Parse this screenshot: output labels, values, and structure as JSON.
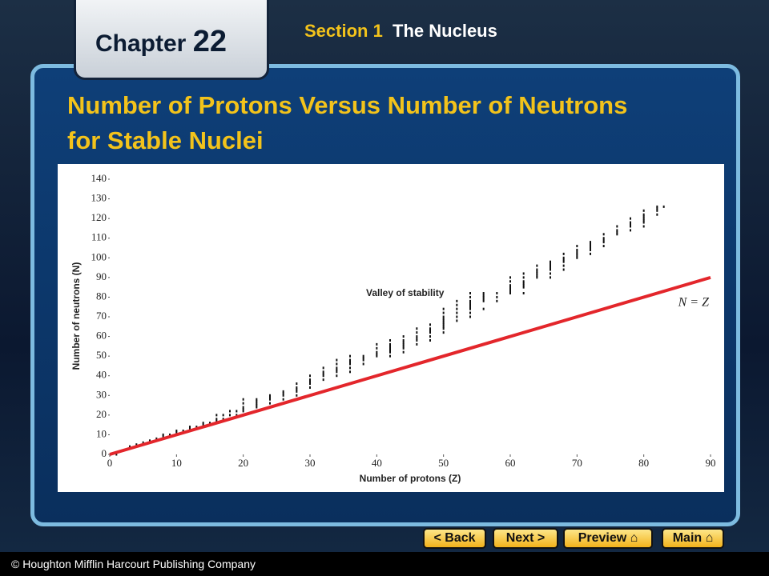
{
  "header": {
    "chapter": "Chapter",
    "chapter_number": "22",
    "section": "Section 1",
    "section_title": "The Nucleus"
  },
  "title": "Number of Protons Versus Number of Neutrons for Stable Nuclei",
  "chart_data": {
    "type": "scatter",
    "xlabel": "Number of protons (Z)",
    "ylabel": "Number of neutrons (N)",
    "annotation": "Valley of stability",
    "xlim": [
      0,
      90
    ],
    "xticks": [
      0,
      10,
      20,
      30,
      40,
      50,
      60,
      70,
      80,
      90
    ],
    "ylim": [
      0,
      140
    ],
    "yticks": [
      0,
      10,
      20,
      30,
      40,
      50,
      60,
      70,
      80,
      90,
      100,
      110,
      120,
      130,
      140
    ],
    "series": [
      {
        "type": "scatter",
        "color": "#111111",
        "x": [
          1,
          1,
          2,
          3,
          4,
          5,
          5,
          6,
          6,
          7,
          7,
          8,
          8,
          8,
          9,
          10,
          10,
          10,
          11,
          12,
          12,
          12,
          13,
          14,
          14,
          14,
          15,
          16,
          16,
          16,
          16,
          17,
          17,
          18,
          18,
          18,
          19,
          19,
          20,
          20,
          20,
          20,
          20,
          20,
          22,
          22,
          22,
          22,
          22,
          24,
          24,
          24,
          24,
          26,
          26,
          26,
          26,
          28,
          28,
          28,
          28,
          28,
          30,
          30,
          30,
          30,
          30,
          32,
          32,
          32,
          32,
          32,
          34,
          34,
          34,
          34,
          34,
          34,
          36,
          36,
          36,
          36,
          36,
          36,
          38,
          38,
          38,
          38,
          40,
          40,
          40,
          40,
          40,
          42,
          42,
          42,
          42,
          42,
          42,
          42,
          44,
          44,
          44,
          44,
          44,
          44,
          44,
          46,
          46,
          46,
          46,
          46,
          46,
          48,
          48,
          48,
          48,
          48,
          48,
          50,
          50,
          50,
          50,
          50,
          50,
          50,
          50,
          50,
          50,
          52,
          52,
          52,
          52,
          52,
          52,
          54,
          54,
          54,
          54,
          54,
          54,
          54,
          54,
          54,
          56,
          56,
          56,
          56,
          56,
          56,
          58,
          58,
          58,
          60,
          60,
          60,
          60,
          60,
          60,
          60,
          62,
          62,
          62,
          62,
          62,
          62,
          62,
          64,
          64,
          64,
          64,
          64,
          64,
          66,
          66,
          66,
          66,
          66,
          66,
          66,
          68,
          68,
          68,
          68,
          68,
          68,
          70,
          70,
          70,
          70,
          70,
          70,
          72,
          72,
          72,
          72,
          72,
          72,
          74,
          74,
          74,
          74,
          74,
          76,
          76,
          76,
          76,
          78,
          78,
          78,
          78,
          78,
          80,
          80,
          80,
          80,
          80,
          80,
          80,
          82,
          82,
          82,
          82,
          83
        ],
        "values": [
          0,
          1,
          2,
          4,
          5,
          5,
          6,
          6,
          7,
          7,
          8,
          8,
          9,
          10,
          10,
          10,
          11,
          12,
          12,
          12,
          13,
          14,
          14,
          14,
          15,
          16,
          16,
          16,
          17,
          18,
          20,
          18,
          20,
          18,
          20,
          22,
          20,
          22,
          20,
          22,
          23,
          24,
          26,
          28,
          24,
          25,
          26,
          27,
          28,
          26,
          28,
          29,
          30,
          28,
          30,
          31,
          32,
          30,
          32,
          33,
          34,
          36,
          34,
          36,
          37,
          38,
          40,
          38,
          40,
          41,
          42,
          44,
          40,
          42,
          43,
          44,
          46,
          48,
          42,
          44,
          46,
          47,
          48,
          50,
          46,
          48,
          49,
          50,
          50,
          51,
          52,
          54,
          56,
          50,
          52,
          53,
          54,
          55,
          56,
          58,
          52,
          54,
          55,
          56,
          57,
          58,
          60,
          56,
          58,
          59,
          60,
          62,
          64,
          58,
          60,
          62,
          63,
          64,
          66,
          62,
          64,
          65,
          66,
          67,
          68,
          69,
          70,
          72,
          74,
          68,
          70,
          72,
          74,
          76,
          78,
          70,
          72,
          74,
          75,
          76,
          77,
          78,
          80,
          82,
          74,
          78,
          79,
          80,
          81,
          82,
          78,
          80,
          82,
          82,
          83,
          84,
          85,
          86,
          88,
          90,
          82,
          85,
          86,
          87,
          88,
          90,
          92,
          90,
          91,
          92,
          93,
          94,
          96,
          90,
          92,
          94,
          95,
          96,
          97,
          98,
          94,
          96,
          98,
          99,
          100,
          102,
          100,
          101,
          102,
          103,
          104,
          106,
          102,
          104,
          105,
          106,
          107,
          108,
          106,
          108,
          109,
          110,
          112,
          112,
          113,
          114,
          116,
          114,
          116,
          117,
          118,
          120,
          116,
          118,
          119,
          120,
          121,
          122,
          124,
          122,
          124,
          125,
          126,
          126
        ]
      },
      {
        "type": "line",
        "name": "N = Z",
        "color": "#e3262b",
        "x": [
          0,
          90
        ],
        "values": [
          0,
          90
        ]
      }
    ]
  },
  "navigation": {
    "back": "Back",
    "next": "Next",
    "preview": "Preview",
    "main": "Main"
  },
  "footer": "© Houghton Mifflin Harcourt Publishing Company"
}
